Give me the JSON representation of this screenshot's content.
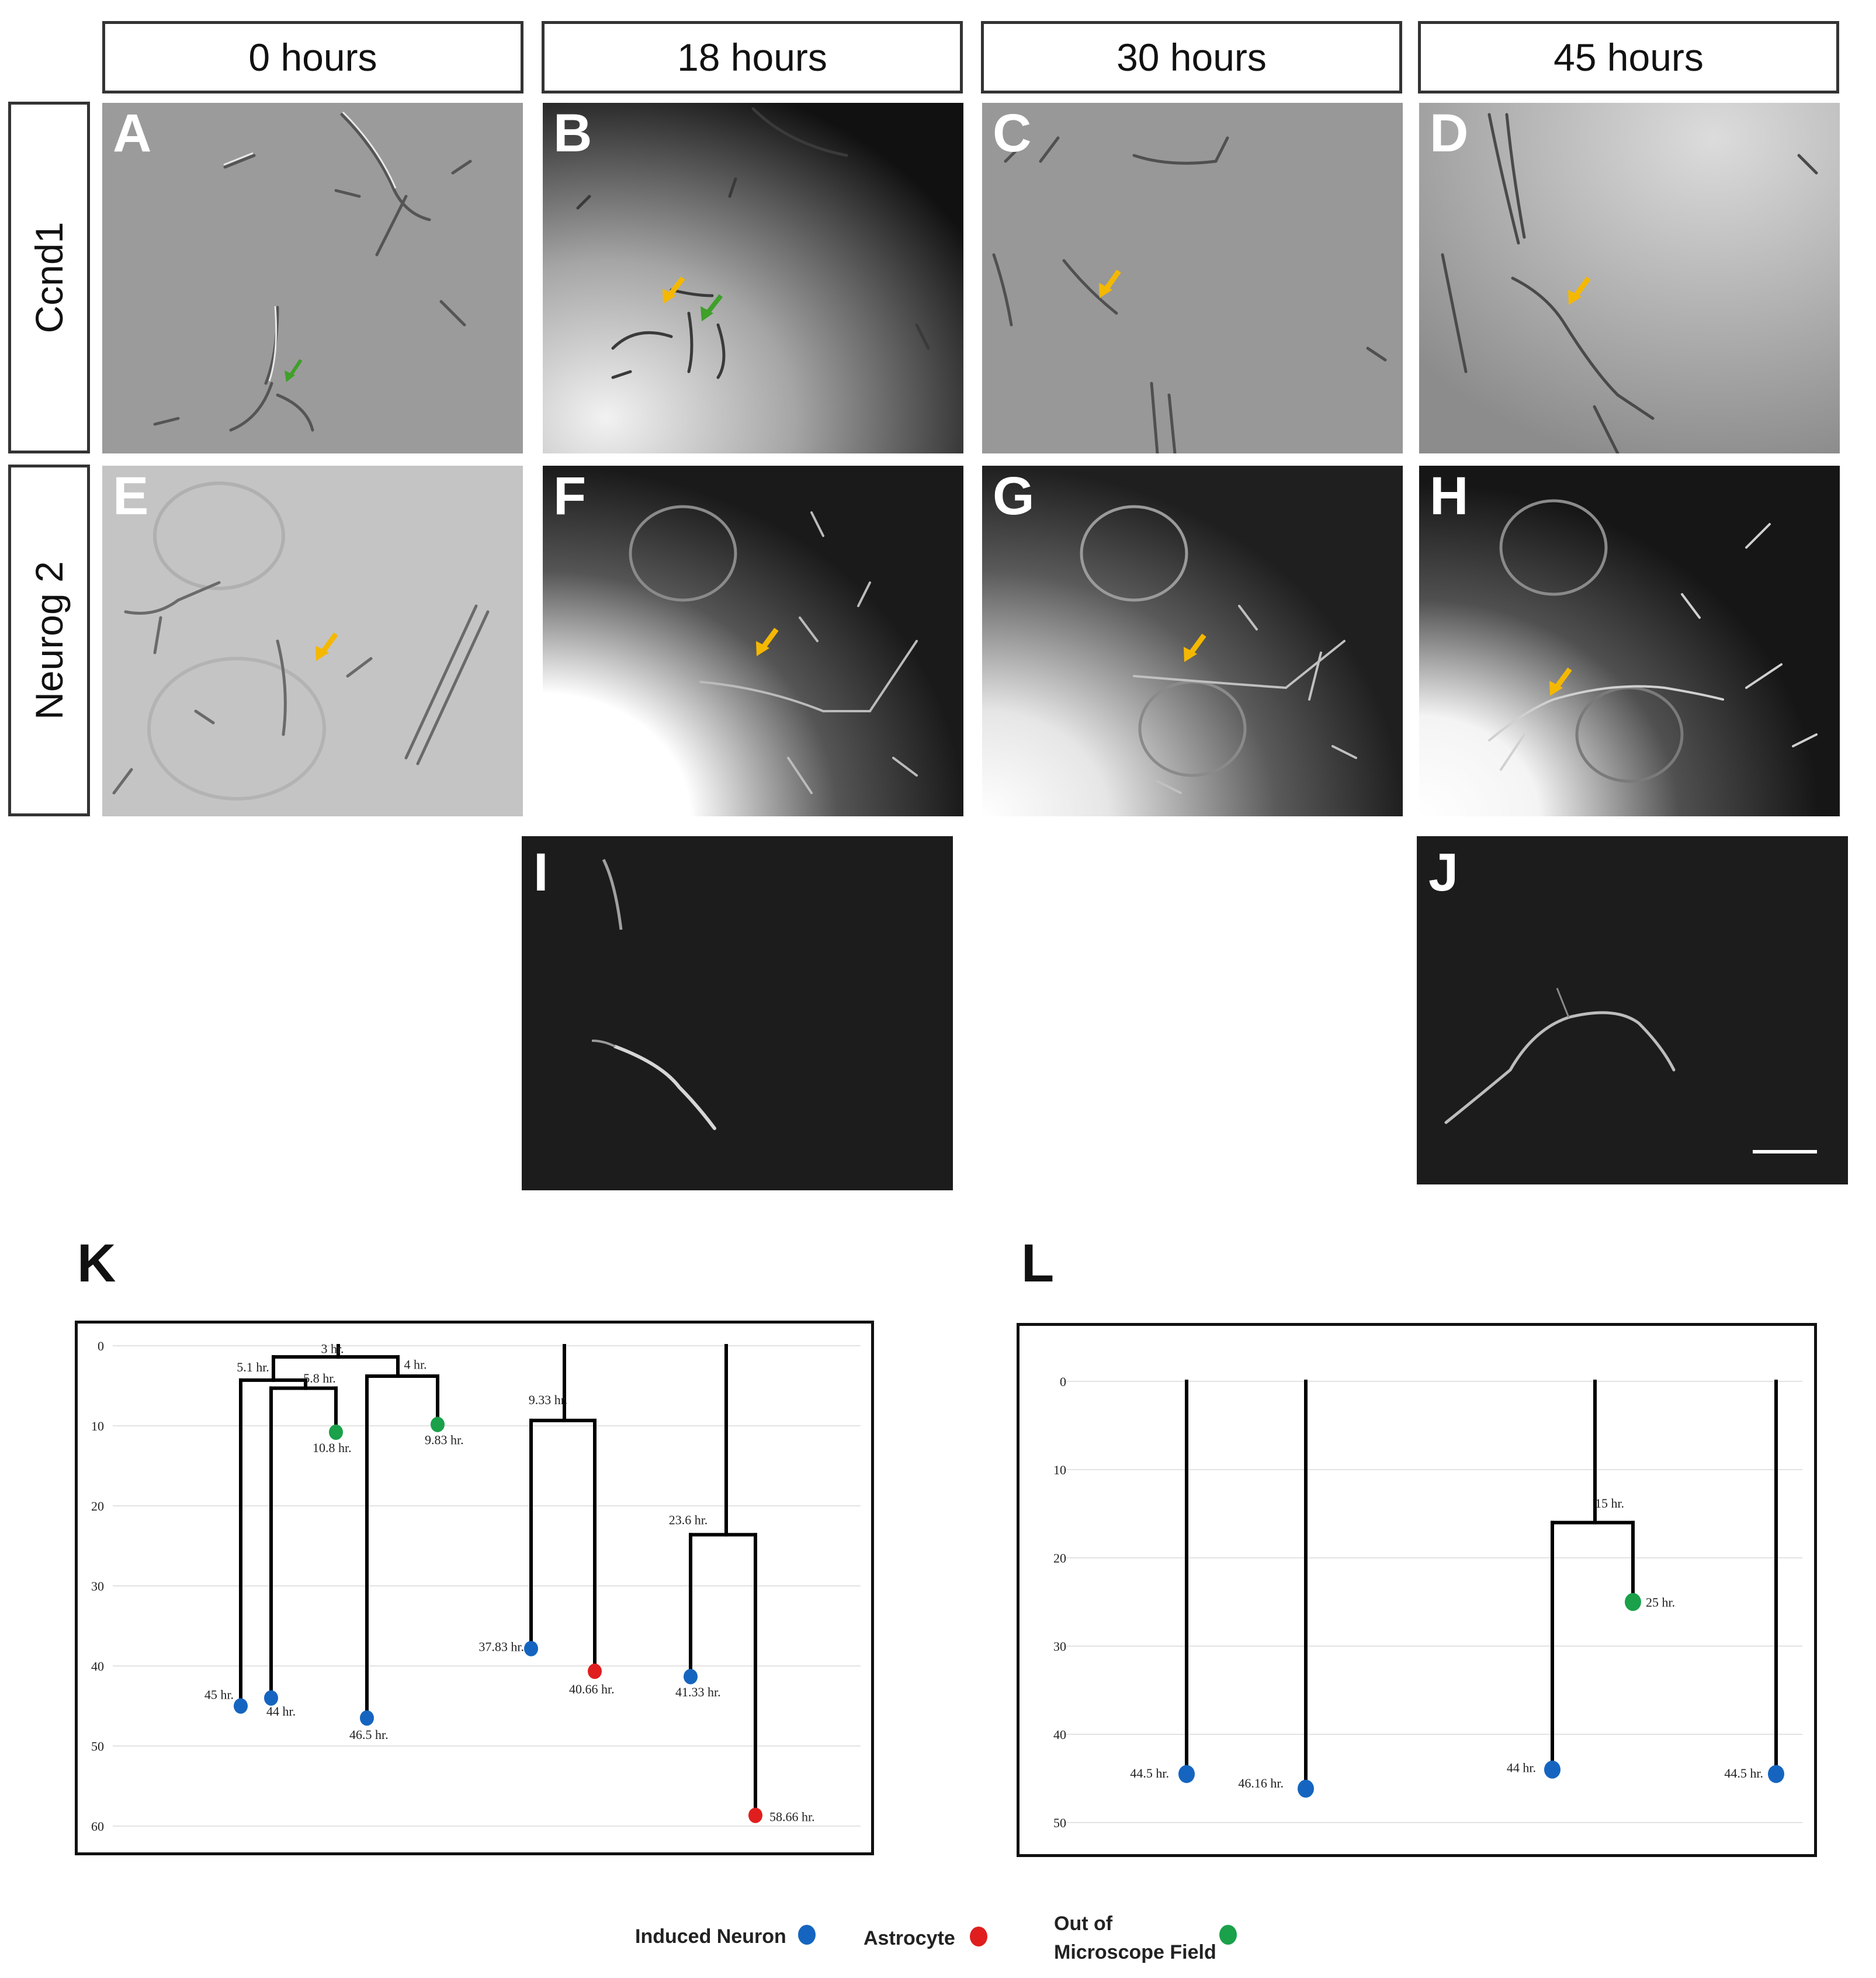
{
  "columns": [
    "0 hours",
    "18 hours",
    "30 hours",
    "45 hours"
  ],
  "rows": [
    "Ccnd1",
    "Neurog 2"
  ],
  "panel_letters": [
    "A",
    "B",
    "C",
    "D",
    "E",
    "F",
    "G",
    "H",
    "I",
    "J"
  ],
  "figure_letters": {
    "k": "K",
    "l": "L"
  },
  "colors": {
    "induced_neuron": "#1565c0",
    "astrocyte": "#e01e1e",
    "out_of_field": "#1aa14a",
    "arrow_yellow": "#f5b800",
    "arrow_green": "#3fa02a"
  },
  "legend": {
    "induced_neuron": "Induced Neuron",
    "astrocyte": "Astrocyte",
    "out_of_field_line1": "Out of",
    "out_of_field_line2": "Microscope Field"
  },
  "chart_data": [
    {
      "panel": "K",
      "type": "lineage-tree",
      "y_axis_reversed": true,
      "ylim": [
        0,
        60
      ],
      "y_ticks": [
        0,
        10,
        20,
        30,
        40,
        50,
        60
      ],
      "division_labels": [
        "3 hr.",
        "5.1 hr.",
        "4 hr.",
        "5.8 hr.",
        "9.33 hr.",
        "23.6 hr."
      ],
      "endpoints": [
        {
          "time": 45,
          "label": "45 hr.",
          "fate": "induced_neuron"
        },
        {
          "time": 44,
          "label": "44 hr.",
          "fate": "induced_neuron"
        },
        {
          "time": 10.8,
          "label": "10.8 hr.",
          "fate": "out_of_field"
        },
        {
          "time": 46.5,
          "label": "46.5 hr.",
          "fate": "induced_neuron"
        },
        {
          "time": 9.83,
          "label": "9.83 hr.",
          "fate": "out_of_field"
        },
        {
          "time": 37.83,
          "label": "37.83 hr.",
          "fate": "induced_neuron"
        },
        {
          "time": 40.66,
          "label": "40.66 hr.",
          "fate": "astrocyte"
        },
        {
          "time": 41.33,
          "label": "41.33 hr.",
          "fate": "induced_neuron"
        },
        {
          "time": 58.66,
          "label": "58.66 hr.",
          "fate": "astrocyte"
        }
      ]
    },
    {
      "panel": "L",
      "type": "lineage-tree",
      "y_axis_reversed": true,
      "ylim": [
        0,
        50
      ],
      "y_ticks": [
        0,
        10,
        20,
        30,
        40,
        50
      ],
      "division_labels": [
        "15 hr."
      ],
      "endpoints": [
        {
          "time": 44.5,
          "label": "44.5 hr.",
          "fate": "induced_neuron"
        },
        {
          "time": 46.16,
          "label": "46.16 hr.",
          "fate": "induced_neuron"
        },
        {
          "time": 44,
          "label": "44 hr.",
          "fate": "induced_neuron"
        },
        {
          "time": 25,
          "label": "25 hr.",
          "fate": "out_of_field"
        },
        {
          "time": 44.5,
          "label": "44.5 hr.",
          "fate": "induced_neuron"
        }
      ]
    }
  ]
}
